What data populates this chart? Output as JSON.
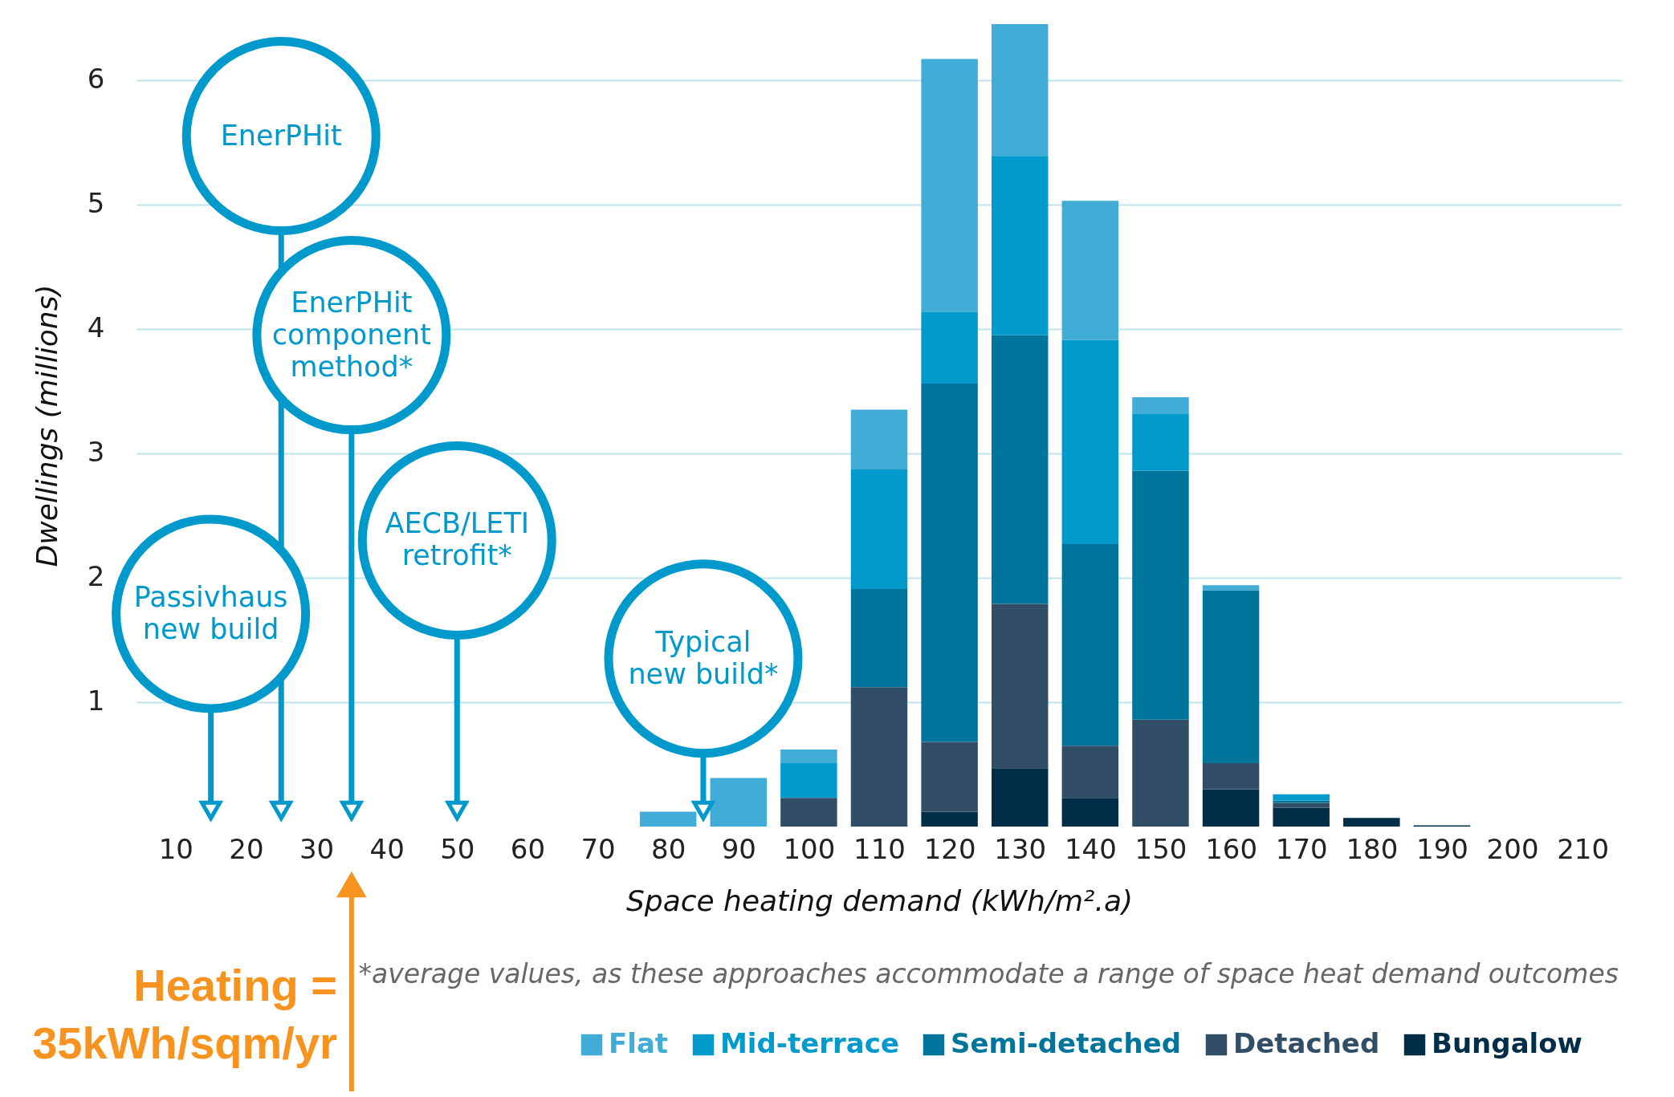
{
  "chart_data": {
    "type": "bar",
    "stacked": true,
    "xlabel": "Space heating demand (kWh/m².a)",
    "ylabel": "Dwellings (millions)",
    "x": [
      80,
      90,
      100,
      110,
      120,
      130,
      140,
      150,
      160,
      170,
      180,
      190
    ],
    "xlim": [
      5,
      215
    ],
    "xticks": [
      10,
      20,
      30,
      40,
      50,
      60,
      70,
      80,
      90,
      100,
      110,
      120,
      130,
      140,
      150,
      160,
      170,
      180,
      190,
      200,
      210
    ],
    "ylim": [
      0,
      6.45
    ],
    "yticks": [
      1,
      2,
      3,
      4,
      5,
      6
    ],
    "grid": "y",
    "legend": "bottom right",
    "series": [
      {
        "name": "Bungalow",
        "color": "#002e48",
        "values": [
          null,
          null,
          null,
          null,
          0.12,
          0.47,
          0.23,
          null,
          0.3,
          0.15,
          0.07,
          0.01
        ]
      },
      {
        "name": "Detached",
        "color": "#314e66",
        "values": [
          null,
          null,
          0.23,
          1.12,
          0.56,
          1.32,
          0.42,
          0.86,
          0.21,
          0.04,
          null,
          null
        ]
      },
      {
        "name": "Semi-detached",
        "color": "#00759b",
        "values": [
          null,
          null,
          null,
          0.79,
          2.88,
          2.16,
          1.62,
          2.0,
          1.39,
          0.02,
          null,
          null
        ]
      },
      {
        "name": "Mid-terrace",
        "color": "#009acd",
        "values": [
          null,
          null,
          0.28,
          0.96,
          0.58,
          1.44,
          1.64,
          0.46,
          null,
          0.05,
          null,
          null
        ]
      },
      {
        "name": "Flat",
        "color": "#41acd6",
        "values": [
          0.12,
          0.39,
          0.11,
          0.48,
          2.03,
          1.06,
          1.12,
          0.13,
          0.04,
          null,
          null,
          null
        ]
      }
    ],
    "annotations": [
      "Passivhaus\nnew build",
      "EnerPHit",
      "EnerPHit\ncomponent\nmethod*",
      "AECB/LETI\nretrofit*",
      "Typical\nnew build*",
      "Heating =\n35kWh/sqm/yr",
      "*average values, as these approaches accommodate a range of space heat demand outcomes"
    ]
  }
}
